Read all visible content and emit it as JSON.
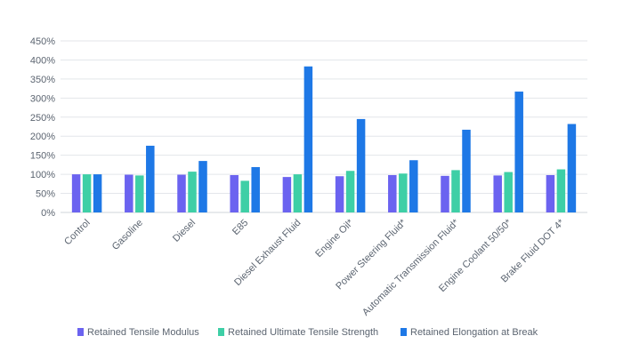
{
  "chart_data": {
    "type": "bar",
    "title": "",
    "xlabel": "",
    "ylabel": "",
    "ylim": [
      0,
      450
    ],
    "yticks": [
      "0%",
      "50%",
      "100%",
      "150%",
      "200%",
      "250%",
      "300%",
      "350%",
      "400%",
      "450%"
    ],
    "ytick_values": [
      0,
      50,
      100,
      150,
      200,
      250,
      300,
      350,
      400,
      450
    ],
    "grid": true,
    "legend_position": "bottom",
    "categories": [
      "Control",
      "Gasoline",
      "Diesel",
      "E85",
      "Diesel Exhaust Fluid",
      "Engine Oil*",
      "Power Steering Fluid*",
      "Automatic Transmission Fluid*",
      "Engine Coolant 50/50*",
      "Brake Fluid DOT 4*"
    ],
    "series": [
      {
        "name": "Retained Tensile Modulus",
        "color": "#6b63f0",
        "values": [
          100,
          99,
          99,
          98,
          93,
          95,
          98,
          96,
          97,
          98
        ]
      },
      {
        "name": "Retained Ultimate Tensile Strength",
        "color": "#3ecfa6",
        "values": [
          100,
          97,
          107,
          83,
          100,
          109,
          102,
          111,
          106,
          113
        ]
      },
      {
        "name": "Retained Elongation at Break",
        "color": "#1e78e6",
        "values": [
          100,
          175,
          135,
          119,
          383,
          245,
          137,
          217,
          317,
          232
        ]
      }
    ]
  }
}
